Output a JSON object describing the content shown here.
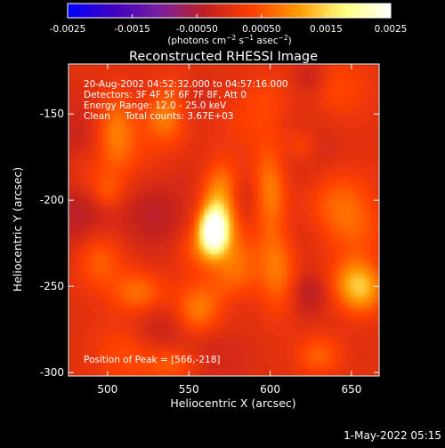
{
  "chart_data": {
    "type": "heatmap",
    "title": "Reconstructed RHESSI Image",
    "xlabel": "Heliocentric X (arcsec)",
    "ylabel": "Heliocentric Y (arcsec)",
    "xlim": [
      476,
      667
    ],
    "ylim": [
      -302,
      -121
    ],
    "x_ticks": [
      {
        "value": 500,
        "label": "500"
      },
      {
        "value": 550,
        "label": "550"
      },
      {
        "value": 600,
        "label": "600"
      },
      {
        "value": 650,
        "label": "650"
      }
    ],
    "y_ticks": [
      {
        "value": -150,
        "label": "-150"
      },
      {
        "value": -200,
        "label": "-200"
      },
      {
        "value": -250,
        "label": "-250"
      },
      {
        "value": -300,
        "label": "-300"
      }
    ],
    "colorbar": {
      "range": [
        -0.0025,
        0.0025
      ],
      "colors": [
        "#0000ff",
        "#4000c0",
        "#7a1f9e",
        "#c02020",
        "#ff4000",
        "#ff9a00",
        "#ffff80",
        "#ffffff"
      ],
      "units_label": "(photons cm^-2 s^-1 asec^-2)",
      "ticks": [
        {
          "value": -0.0025,
          "label": "-0.0025"
        },
        {
          "value": -0.0015,
          "label": "-0.0015"
        },
        {
          "value": -0.0005,
          "label": "-0.00050"
        },
        {
          "value": 0.0005,
          "label": "0.00050"
        },
        {
          "value": 0.0015,
          "label": "0.0015"
        },
        {
          "value": 0.0025,
          "label": "0.0025"
        }
      ]
    },
    "annotations": [
      "20-Aug-2002 04:52:32.000 to 04:57:16.000",
      "Detectors: 3F 4F 5F 6F 7F 8F, Att 0",
      "Energy Range: 12.0 - 25.0 keV",
      "Clean     Total counts: 3.67E+03",
      "Position of Peak = [566,-218]"
    ],
    "peak": {
      "x": 566,
      "y": -218
    },
    "grid": false
  },
  "footer": {
    "timestamp": "1-May-2022 05:15"
  }
}
